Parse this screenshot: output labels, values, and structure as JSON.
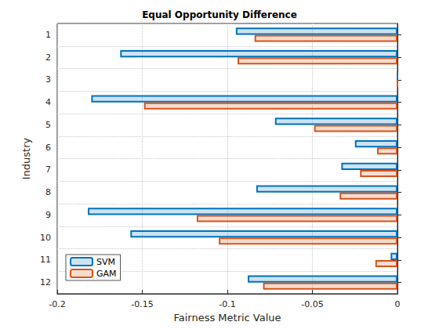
{
  "chart_data": {
    "type": "bar",
    "orientation": "horizontal",
    "title": "Equal Opportunity Difference",
    "x_label": "Fairness Metric Value",
    "y_label": "Industry",
    "categories": [
      "1",
      "2",
      "3",
      "4",
      "5",
      "6",
      "7",
      "8",
      "9",
      "10",
      "11",
      "12"
    ],
    "series": [
      {
        "name": "SVM",
        "color": "#0072BD",
        "values": [
          -0.095,
          -0.163,
          0,
          -0.18,
          -0.072,
          -0.025,
          -0.033,
          -0.083,
          -0.182,
          -0.157,
          -0.004,
          -0.088
        ]
      },
      {
        "name": "GAM",
        "color": "#D95319",
        "values": [
          -0.084,
          -0.094,
          0,
          -0.149,
          -0.049,
          -0.012,
          -0.022,
          -0.034,
          -0.118,
          -0.105,
          -0.013,
          -0.079
        ]
      }
    ],
    "xlim": [
      -0.2,
      0
    ],
    "xticks": [
      -0.2,
      -0.15,
      -0.1,
      -0.05,
      0
    ],
    "grid": true,
    "legend": "lower left"
  }
}
